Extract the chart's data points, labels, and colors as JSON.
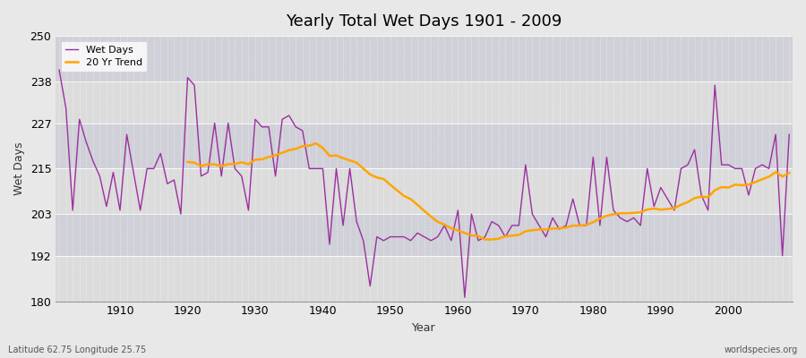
{
  "title": "Yearly Total Wet Days 1901 - 2009",
  "xlabel": "Year",
  "ylabel": "Wet Days",
  "footer_left": "Latitude 62.75 Longitude 25.75",
  "footer_right": "worldspecies.org",
  "line_color": "#9B30A0",
  "trend_color": "#FFA500",
  "bg_color": "#E8E8E8",
  "plot_bg_color": "#DCDCDC",
  "band_color1": "#DCDCDC",
  "band_color2": "#D0D0D8",
  "ylim": [
    180,
    250
  ],
  "yticks": [
    180,
    192,
    203,
    215,
    227,
    238,
    250
  ],
  "years": [
    1901,
    1902,
    1903,
    1904,
    1905,
    1906,
    1907,
    1908,
    1909,
    1910,
    1911,
    1912,
    1913,
    1914,
    1915,
    1916,
    1917,
    1918,
    1919,
    1920,
    1921,
    1922,
    1923,
    1924,
    1925,
    1926,
    1927,
    1928,
    1929,
    1930,
    1931,
    1932,
    1933,
    1934,
    1935,
    1936,
    1937,
    1938,
    1939,
    1940,
    1941,
    1942,
    1943,
    1944,
    1945,
    1946,
    1947,
    1948,
    1949,
    1950,
    1951,
    1952,
    1953,
    1954,
    1955,
    1956,
    1957,
    1958,
    1959,
    1960,
    1961,
    1962,
    1963,
    1964,
    1965,
    1966,
    1967,
    1968,
    1969,
    1970,
    1971,
    1972,
    1973,
    1974,
    1975,
    1976,
    1977,
    1978,
    1979,
    1980,
    1981,
    1982,
    1983,
    1984,
    1985,
    1986,
    1987,
    1988,
    1989,
    1990,
    1991,
    1992,
    1993,
    1994,
    1995,
    1996,
    1997,
    1998,
    1999,
    2000,
    2001,
    2002,
    2003,
    2004,
    2005,
    2006,
    2007,
    2008,
    2009
  ],
  "wet_days": [
    241,
    231,
    204,
    228,
    222,
    217,
    213,
    205,
    214,
    204,
    224,
    214,
    204,
    215,
    215,
    219,
    211,
    212,
    203,
    239,
    237,
    213,
    214,
    227,
    213,
    227,
    215,
    213,
    204,
    228,
    226,
    226,
    213,
    228,
    229,
    226,
    225,
    215,
    215,
    215,
    195,
    215,
    200,
    215,
    201,
    196,
    184,
    197,
    196,
    197,
    197,
    197,
    196,
    198,
    197,
    196,
    197,
    200,
    196,
    204,
    181,
    203,
    196,
    197,
    201,
    200,
    197,
    200,
    200,
    216,
    203,
    200,
    197,
    202,
    199,
    200,
    207,
    200,
    200,
    218,
    200,
    218,
    204,
    202,
    201,
    202,
    200,
    215,
    205,
    210,
    207,
    204,
    215,
    216,
    220,
    208,
    204,
    237,
    216,
    216,
    215,
    215,
    208,
    215,
    216,
    215,
    224,
    192,
    224
  ],
  "trend_window": 20
}
